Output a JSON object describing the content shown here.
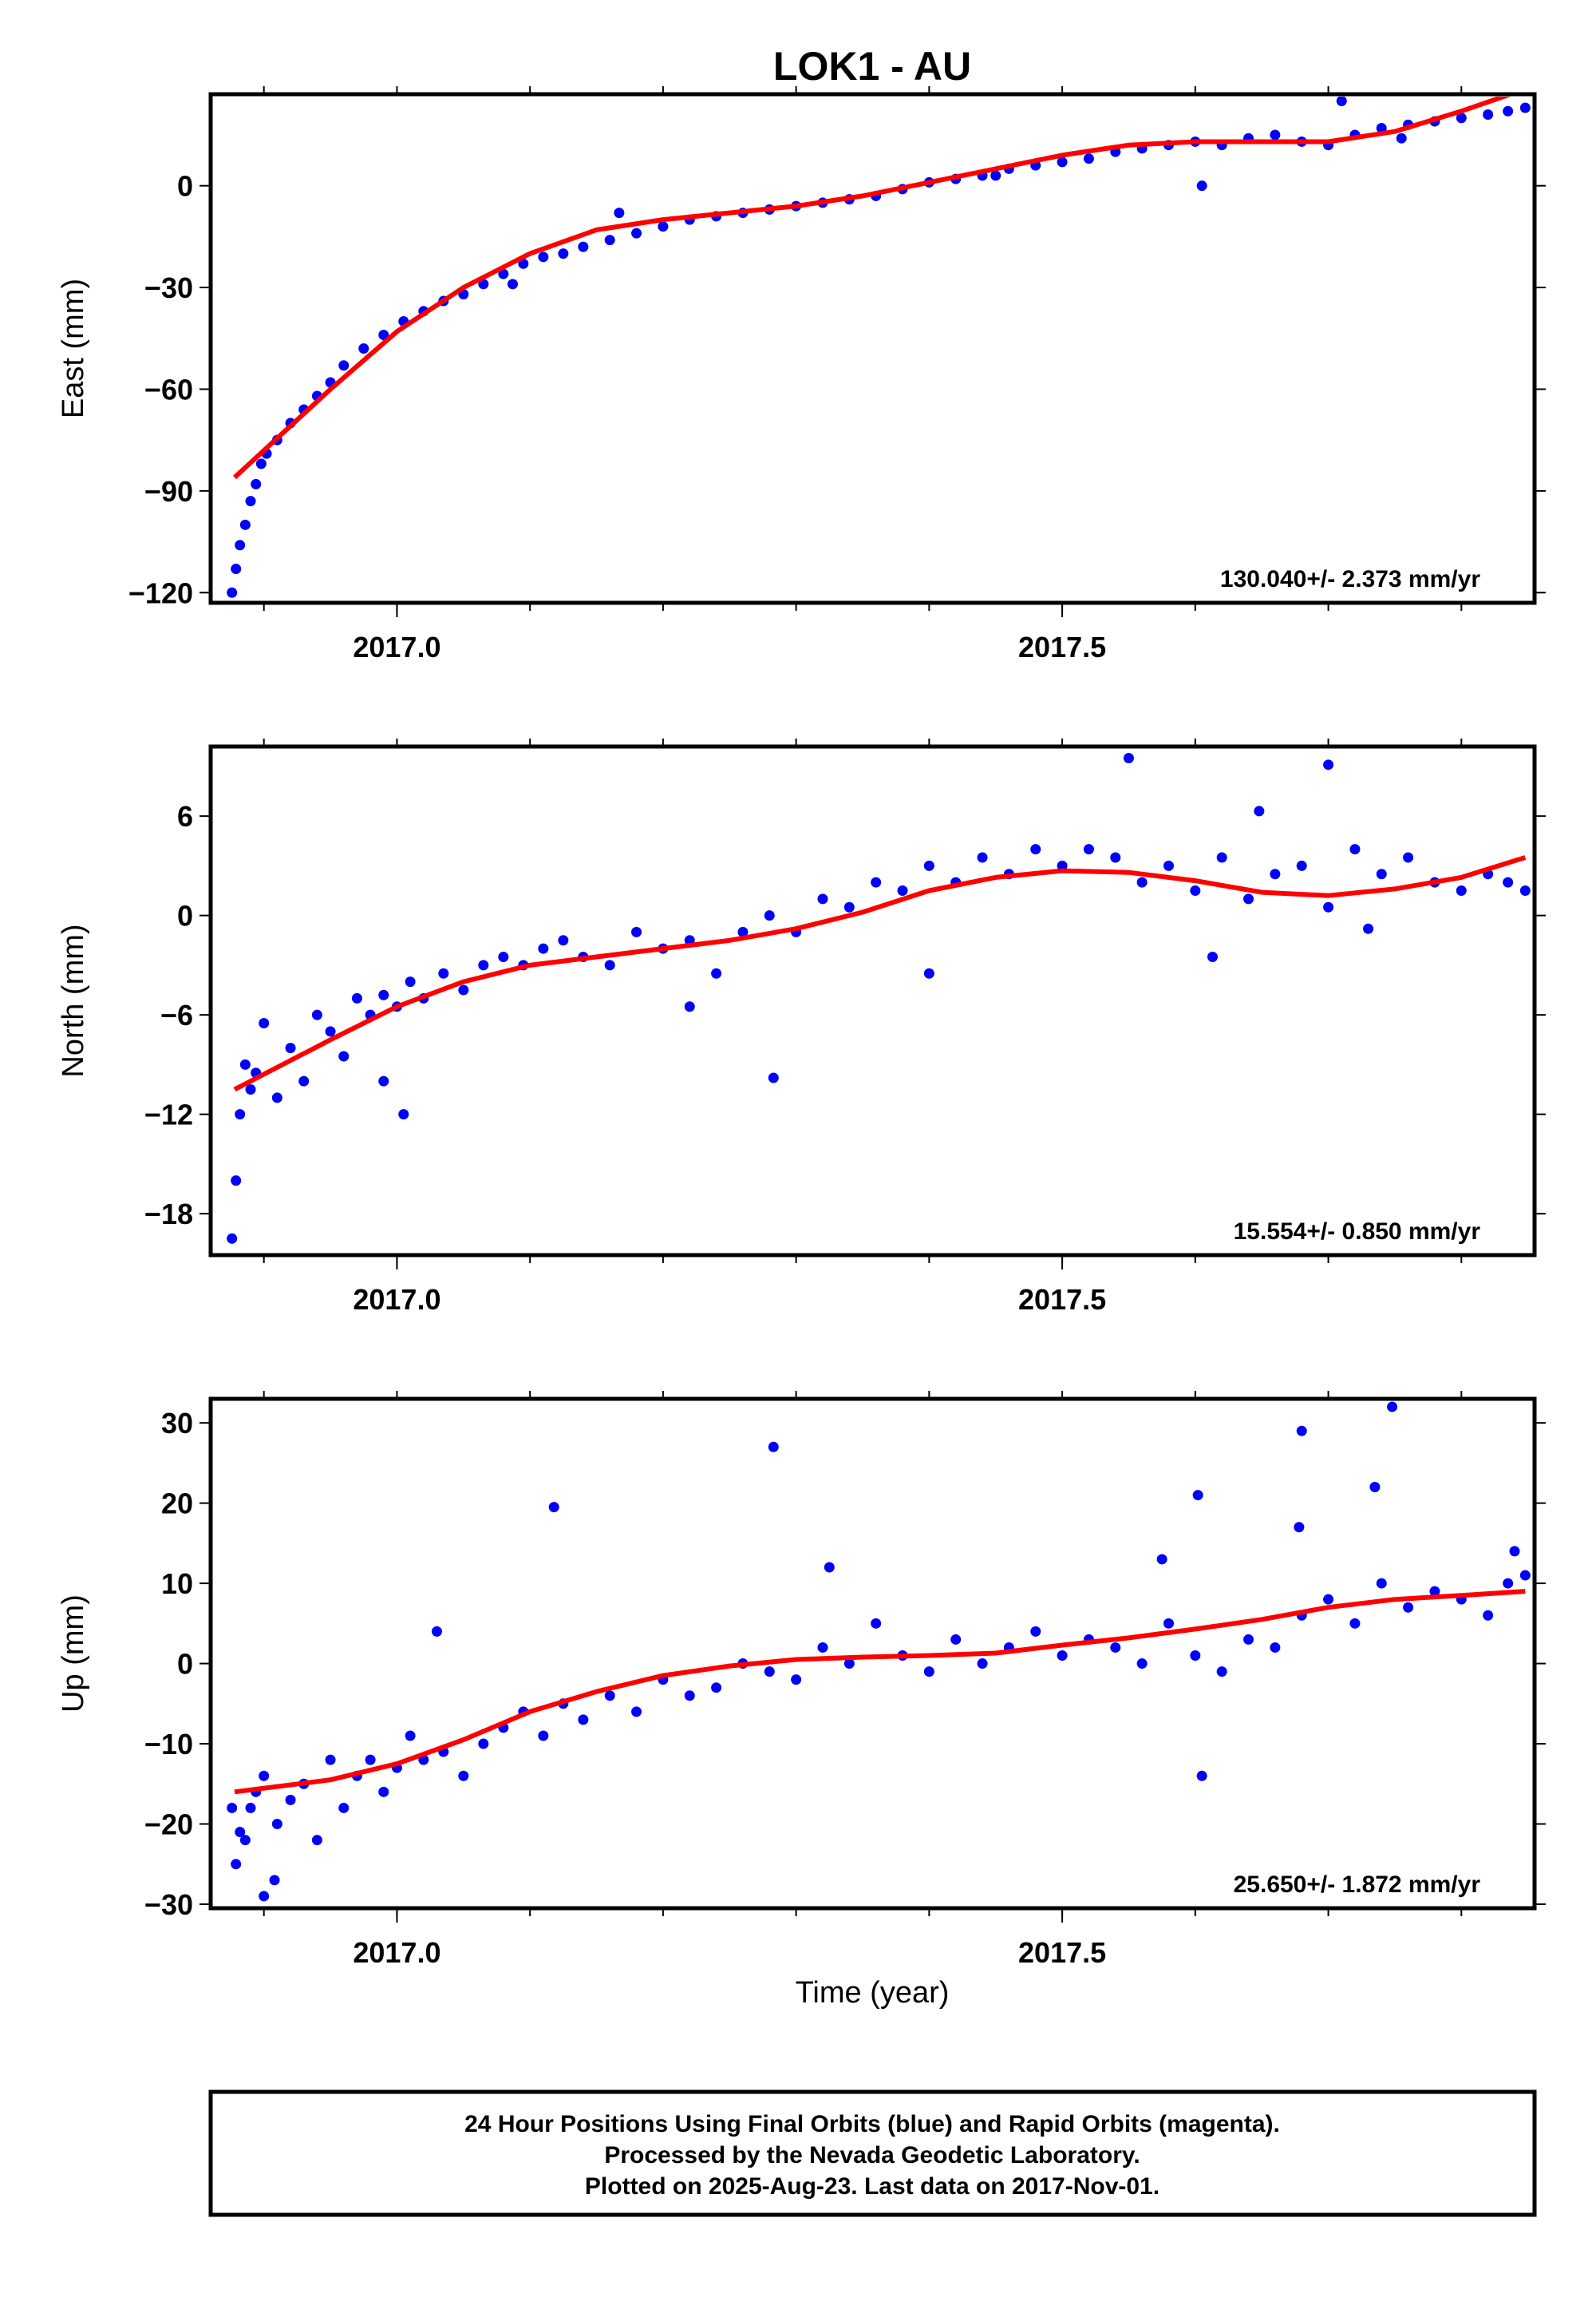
{
  "title": "LOK1 - AU",
  "xlabel": "Time (year)",
  "footer": {
    "line1": "24 Hour Positions Using Final Orbits (blue) and Rapid Orbits (magenta).",
    "line2": "Processed by the Nevada Geodetic Laboratory.",
    "line3": "Plotted on 2025-Aug-23. Last data on 2017-Nov-01."
  },
  "colors": {
    "points": "#0000ff",
    "fit": "#ff0000",
    "frame": "#000000"
  },
  "chart_data": [
    {
      "type": "scatter",
      "ylabel": "East (mm)",
      "rate_text": "130.040+/- 2.373 mm/yr",
      "xlim": [
        2016.86,
        2017.855
      ],
      "ylim": [
        -123,
        27
      ],
      "xticks": [
        2017.0,
        2017.5
      ],
      "xtick_labels": [
        "2017.0",
        "2017.5"
      ],
      "xtick_minor": [
        2016.9,
        2017.0,
        2017.1,
        2017.2,
        2017.3,
        2017.4,
        2017.5,
        2017.6,
        2017.7,
        2017.8
      ],
      "yticks": [
        -120,
        -90,
        -60,
        -30,
        0
      ],
      "ytick_labels": [
        "−120",
        "−90",
        "−60",
        "−30",
        "0"
      ],
      "trend": {
        "x": [
          2016.878,
          2016.95,
          2017.0,
          2017.05,
          2017.1,
          2017.15,
          2017.2,
          2017.25,
          2017.3,
          2017.35,
          2017.4,
          2017.45,
          2017.5,
          2017.55,
          2017.6,
          2017.65,
          2017.7,
          2017.75,
          2017.8,
          2017.837
        ],
        "y": [
          -86,
          -60,
          -43,
          -30,
          -20,
          -13,
          -10,
          -8,
          -6,
          -3,
          1,
          5,
          9,
          12,
          13,
          13,
          13,
          16,
          22,
          27
        ]
      },
      "points": {
        "x": [
          2016.876,
          2016.879,
          2016.882,
          2016.886,
          2016.89,
          2016.894,
          2016.898,
          2016.902,
          2016.91,
          2016.92,
          2016.93,
          2016.94,
          2016.95,
          2016.96,
          2016.975,
          2016.99,
          2017.005,
          2017.02,
          2017.035,
          2017.05,
          2017.065,
          2017.08,
          2017.095,
          2017.11,
          2017.125,
          2017.14,
          2017.16,
          2017.18,
          2017.2,
          2017.22,
          2017.24,
          2017.26,
          2017.28,
          2017.3,
          2017.32,
          2017.34,
          2017.36,
          2017.38,
          2017.4,
          2017.42,
          2017.44,
          2017.46,
          2017.48,
          2017.5,
          2017.52,
          2017.54,
          2017.56,
          2017.58,
          2017.6,
          2017.62,
          2017.64,
          2017.66,
          2017.68,
          2017.7,
          2017.72,
          2017.74,
          2017.76,
          2017.78,
          2017.8,
          2017.82,
          2017.835,
          2017.848,
          2017.71,
          2017.755,
          2017.605,
          2017.087,
          2017.167,
          2017.45
        ],
        "y": [
          -120,
          -113,
          -106,
          -100,
          -93,
          -88,
          -82,
          -79,
          -75,
          -70,
          -66,
          -62,
          -58,
          -53,
          -48,
          -44,
          -40,
          -37,
          -34,
          -32,
          -29,
          -26,
          -23,
          -21,
          -20,
          -18,
          -16,
          -14,
          -12,
          -10,
          -9,
          -8,
          -7,
          -6,
          -5,
          -4,
          -3,
          -1,
          1,
          2,
          3,
          5,
          6,
          7,
          8,
          10,
          11,
          12,
          13,
          12,
          14,
          15,
          13,
          12,
          15,
          17,
          18,
          19,
          20,
          21,
          22,
          23,
          25,
          14,
          0,
          -29,
          -8,
          3
        ]
      }
    },
    {
      "type": "scatter",
      "ylabel": "North (mm)",
      "rate_text": "15.554+/- 0.850 mm/yr",
      "xlim": [
        2016.86,
        2017.855
      ],
      "ylim": [
        -20.5,
        10.2
      ],
      "xticks": [
        2017.0,
        2017.5
      ],
      "xtick_labels": [
        "2017.0",
        "2017.5"
      ],
      "xtick_minor": [
        2016.9,
        2017.0,
        2017.1,
        2017.2,
        2017.3,
        2017.4,
        2017.5,
        2017.6,
        2017.7,
        2017.8
      ],
      "yticks": [
        -18,
        -12,
        -6,
        0,
        6
      ],
      "ytick_labels": [
        "−18",
        "−12",
        "−6",
        "0",
        "6"
      ],
      "trend": {
        "x": [
          2016.878,
          2016.95,
          2017.0,
          2017.05,
          2017.1,
          2017.15,
          2017.2,
          2017.25,
          2017.3,
          2017.35,
          2017.4,
          2017.45,
          2017.5,
          2017.55,
          2017.6,
          2017.65,
          2017.7,
          2017.75,
          2017.8,
          2017.848
        ],
        "y": [
          -10.5,
          -7.5,
          -5.5,
          -4.0,
          -3.0,
          -2.5,
          -2.0,
          -1.5,
          -0.8,
          0.2,
          1.5,
          2.3,
          2.7,
          2.6,
          2.1,
          1.4,
          1.2,
          1.6,
          2.3,
          3.5
        ]
      },
      "points": {
        "x": [
          2016.876,
          2016.879,
          2016.882,
          2016.886,
          2016.89,
          2016.894,
          2016.9,
          2016.91,
          2016.92,
          2016.93,
          2016.94,
          2016.95,
          2016.96,
          2016.97,
          2016.98,
          2016.99,
          2017.0,
          2017.01,
          2017.02,
          2017.035,
          2017.05,
          2017.065,
          2017.08,
          2017.095,
          2017.11,
          2017.125,
          2017.14,
          2017.16,
          2017.18,
          2017.2,
          2017.22,
          2017.24,
          2017.26,
          2017.28,
          2017.3,
          2017.32,
          2017.34,
          2017.36,
          2017.38,
          2017.4,
          2017.42,
          2017.44,
          2017.46,
          2017.48,
          2017.5,
          2017.52,
          2017.54,
          2017.56,
          2017.58,
          2017.6,
          2017.62,
          2017.64,
          2017.66,
          2017.68,
          2017.7,
          2017.72,
          2017.74,
          2017.76,
          2017.78,
          2017.8,
          2017.82,
          2017.835,
          2017.848,
          2017.283,
          2017.005,
          2017.55,
          2017.648,
          2017.7,
          2017.613,
          2017.4,
          2017.22,
          2017.73,
          2016.99
        ],
        "y": [
          -19.5,
          -16.0,
          -12.0,
          -9.0,
          -10.5,
          -9.5,
          -6.5,
          -11.0,
          -8.0,
          -10.0,
          -6.0,
          -7.0,
          -8.5,
          -5.0,
          -6.0,
          -10.0,
          -5.5,
          -4.0,
          -5.0,
          -3.5,
          -4.5,
          -3.0,
          -2.5,
          -3.0,
          -2.0,
          -1.5,
          -2.5,
          -3.0,
          -1.0,
          -2.0,
          -1.5,
          -3.5,
          -1.0,
          0.0,
          -1.0,
          1.0,
          0.5,
          2.0,
          1.5,
          3.0,
          2.0,
          3.5,
          2.5,
          4.0,
          3.0,
          4.0,
          3.5,
          2.0,
          3.0,
          1.5,
          3.5,
          1.0,
          2.5,
          3.0,
          0.5,
          4.0,
          2.5,
          3.5,
          2.0,
          1.5,
          2.5,
          2.0,
          1.5,
          -9.8,
          -12.0,
          9.5,
          6.3,
          9.1,
          -2.5,
          -3.5,
          -5.5,
          -0.8,
          -4.8
        ]
      }
    },
    {
      "type": "scatter",
      "ylabel": "Up (mm)",
      "rate_text": "25.650+/- 1.872 mm/yr",
      "xlim": [
        2016.86,
        2017.855
      ],
      "ylim": [
        -30.5,
        33
      ],
      "xticks": [
        2017.0,
        2017.5
      ],
      "xtick_labels": [
        "2017.0",
        "2017.5"
      ],
      "xtick_minor": [
        2016.9,
        2017.0,
        2017.1,
        2017.2,
        2017.3,
        2017.4,
        2017.5,
        2017.6,
        2017.7,
        2017.8
      ],
      "yticks": [
        -30,
        -20,
        -10,
        0,
        10,
        20,
        30
      ],
      "ytick_labels": [
        "−30",
        "−20",
        "−10",
        "0",
        "10",
        "20",
        "30"
      ],
      "trend": {
        "x": [
          2016.878,
          2016.95,
          2017.0,
          2017.05,
          2017.1,
          2017.15,
          2017.2,
          2017.25,
          2017.3,
          2017.35,
          2017.4,
          2017.45,
          2017.5,
          2017.55,
          2017.6,
          2017.65,
          2017.7,
          2017.75,
          2017.8,
          2017.848
        ],
        "y": [
          -16,
          -14.5,
          -12.5,
          -9.5,
          -6.0,
          -3.5,
          -1.5,
          -0.3,
          0.5,
          0.8,
          1.0,
          1.3,
          2.3,
          3.2,
          4.3,
          5.5,
          7.0,
          8.0,
          8.5,
          9.0
        ]
      },
      "points": {
        "x": [
          2016.876,
          2016.879,
          2016.882,
          2016.886,
          2016.89,
          2016.894,
          2016.9,
          2016.91,
          2016.92,
          2016.93,
          2016.94,
          2016.95,
          2016.96,
          2016.97,
          2016.98,
          2016.99,
          2017.0,
          2017.01,
          2017.02,
          2017.035,
          2017.05,
          2017.065,
          2017.08,
          2017.095,
          2017.11,
          2017.125,
          2017.14,
          2017.16,
          2017.18,
          2017.2,
          2017.22,
          2017.24,
          2017.26,
          2017.28,
          2017.3,
          2017.32,
          2017.34,
          2017.36,
          2017.38,
          2017.4,
          2017.42,
          2017.44,
          2017.46,
          2017.48,
          2017.5,
          2017.52,
          2017.54,
          2017.56,
          2017.58,
          2017.6,
          2017.62,
          2017.64,
          2017.66,
          2017.68,
          2017.7,
          2017.72,
          2017.74,
          2017.76,
          2017.78,
          2017.8,
          2017.82,
          2017.835,
          2017.848,
          2016.9,
          2016.908,
          2017.03,
          2017.118,
          2017.283,
          2017.325,
          2017.605,
          2017.602,
          2017.678,
          2017.735,
          2017.748,
          2017.84,
          2017.68,
          2017.575
        ],
        "y": [
          -18,
          -25,
          -21,
          -22,
          -18,
          -16,
          -14,
          -20,
          -17,
          -15,
          -22,
          -12,
          -18,
          -14,
          -12,
          -16,
          -13,
          -9,
          -12,
          -11,
          -14,
          -10,
          -8,
          -6,
          -9,
          -5,
          -7,
          -4,
          -6,
          -2,
          -4,
          -3,
          0,
          -1,
          -2,
          2,
          0,
          5,
          1,
          -1,
          3,
          0,
          2,
          4,
          1,
          3,
          2,
          0,
          5,
          1,
          -1,
          3,
          2,
          6,
          8,
          5,
          10,
          7,
          9,
          8,
          6,
          10,
          11,
          -29,
          -27,
          4,
          19.5,
          27,
          12,
          -14,
          21,
          17,
          22,
          32,
          14,
          29,
          13
        ]
      }
    }
  ]
}
